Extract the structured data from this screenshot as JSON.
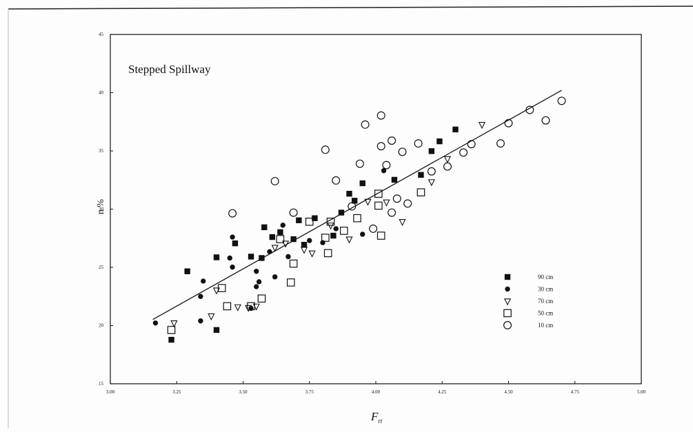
{
  "chart_data": {
    "type": "scatter",
    "title": "Stepped Spillway",
    "y_label": "n %",
    "x_label": "F",
    "x_label_sub": "rt",
    "xlim": [
      3.0,
      5.0
    ],
    "ylim": [
      15,
      45
    ],
    "xticks": [
      {
        "value": 3.0,
        "label": "3.00"
      },
      {
        "value": 3.25,
        "label": "3.25"
      },
      {
        "value": 3.5,
        "label": "3.50"
      },
      {
        "value": 3.75,
        "label": "3.75"
      },
      {
        "value": 4.0,
        "label": "4.00"
      },
      {
        "value": 4.25,
        "label": "4.25"
      },
      {
        "value": 4.5,
        "label": "4.50"
      },
      {
        "value": 4.75,
        "label": "4.75"
      },
      {
        "value": 5.0,
        "label": "5.00"
      }
    ],
    "yticks": [
      15,
      20,
      25,
      30,
      35,
      40,
      45
    ],
    "legend": "lower-right",
    "color": "#111111",
    "series": [
      {
        "name": "90 cm",
        "marker": "filled-square",
        "x": [
          3.23,
          3.29,
          3.4,
          3.4,
          3.47,
          3.53,
          3.57,
          3.58,
          3.61,
          3.64,
          3.69,
          3.71,
          3.73,
          3.77,
          3.84,
          3.87,
          3.9,
          3.92,
          3.95,
          4.07,
          4.17,
          4.21,
          4.24,
          4.3
        ],
        "y": [
          18.78,
          24.66,
          25.86,
          19.62,
          27.06,
          25.92,
          25.8,
          28.44,
          27.6,
          28.02,
          27.42,
          29.04,
          26.94,
          29.22,
          27.72,
          29.7,
          31.32,
          30.72,
          32.22,
          32.52,
          32.94,
          34.98,
          35.82,
          36.84
        ]
      },
      {
        "name": "30 cm",
        "marker": "filled-circle",
        "x": [
          3.17,
          3.34,
          3.35,
          3.34,
          3.45,
          3.46,
          3.46,
          3.55,
          3.56,
          3.6,
          3.62,
          3.65,
          3.67,
          3.75,
          3.8,
          3.85,
          3.95,
          4.03,
          3.55,
          3.53
        ],
        "y": [
          20.22,
          20.4,
          23.82,
          22.5,
          25.8,
          25.02,
          27.6,
          23.34,
          23.76,
          26.34,
          24.18,
          28.62,
          25.92,
          27.3,
          27.12,
          28.32,
          27.84,
          33.3,
          24.66,
          21.48
        ]
      },
      {
        "name": "70 cm",
        "marker": "open-triangle",
        "x": [
          3.24,
          3.38,
          3.4,
          3.48,
          3.52,
          3.55,
          3.62,
          3.66,
          3.73,
          3.76,
          3.83,
          3.9,
          3.97,
          4.04,
          4.1,
          4.21,
          4.27,
          4.4
        ],
        "y": [
          20.22,
          20.82,
          23.04,
          21.6,
          21.54,
          21.66,
          26.7,
          27.06,
          26.52,
          26.22,
          28.62,
          27.42,
          30.66,
          30.6,
          28.92,
          32.34,
          34.32,
          37.26
        ]
      },
      {
        "name": "50 cm",
        "marker": "open-square",
        "x": [
          3.23,
          3.42,
          3.44,
          3.53,
          3.57,
          3.64,
          3.68,
          3.69,
          3.75,
          3.81,
          3.82,
          3.83,
          3.88,
          3.93,
          4.01,
          4.01,
          4.02,
          4.17
        ],
        "y": [
          19.62,
          23.22,
          21.66,
          21.66,
          22.32,
          27.42,
          23.7,
          25.32,
          28.92,
          27.54,
          26.22,
          28.92,
          28.14,
          29.22,
          31.32,
          30.3,
          27.72,
          31.44
        ]
      },
      {
        "name": "10 cm",
        "marker": "open-circle",
        "x": [
          3.46,
          3.62,
          3.69,
          3.81,
          3.85,
          3.91,
          3.94,
          3.96,
          3.99,
          4.02,
          4.02,
          4.04,
          4.06,
          4.06,
          4.08,
          4.1,
          4.12,
          4.16,
          4.21,
          4.27,
          4.33,
          4.36,
          4.47,
          4.5,
          4.58,
          4.64,
          4.7
        ],
        "y": [
          29.64,
          32.4,
          29.7,
          35.1,
          32.46,
          30.24,
          33.9,
          37.26,
          28.32,
          38.04,
          35.4,
          33.78,
          35.88,
          29.7,
          30.9,
          34.92,
          30.48,
          35.64,
          33.24,
          33.66,
          34.86,
          35.58,
          35.64,
          37.38,
          38.52,
          37.62,
          39.3
        ]
      }
    ],
    "trend": {
      "x": [
        3.16,
        4.7
      ],
      "y": [
        20.52,
        40.2
      ]
    }
  }
}
